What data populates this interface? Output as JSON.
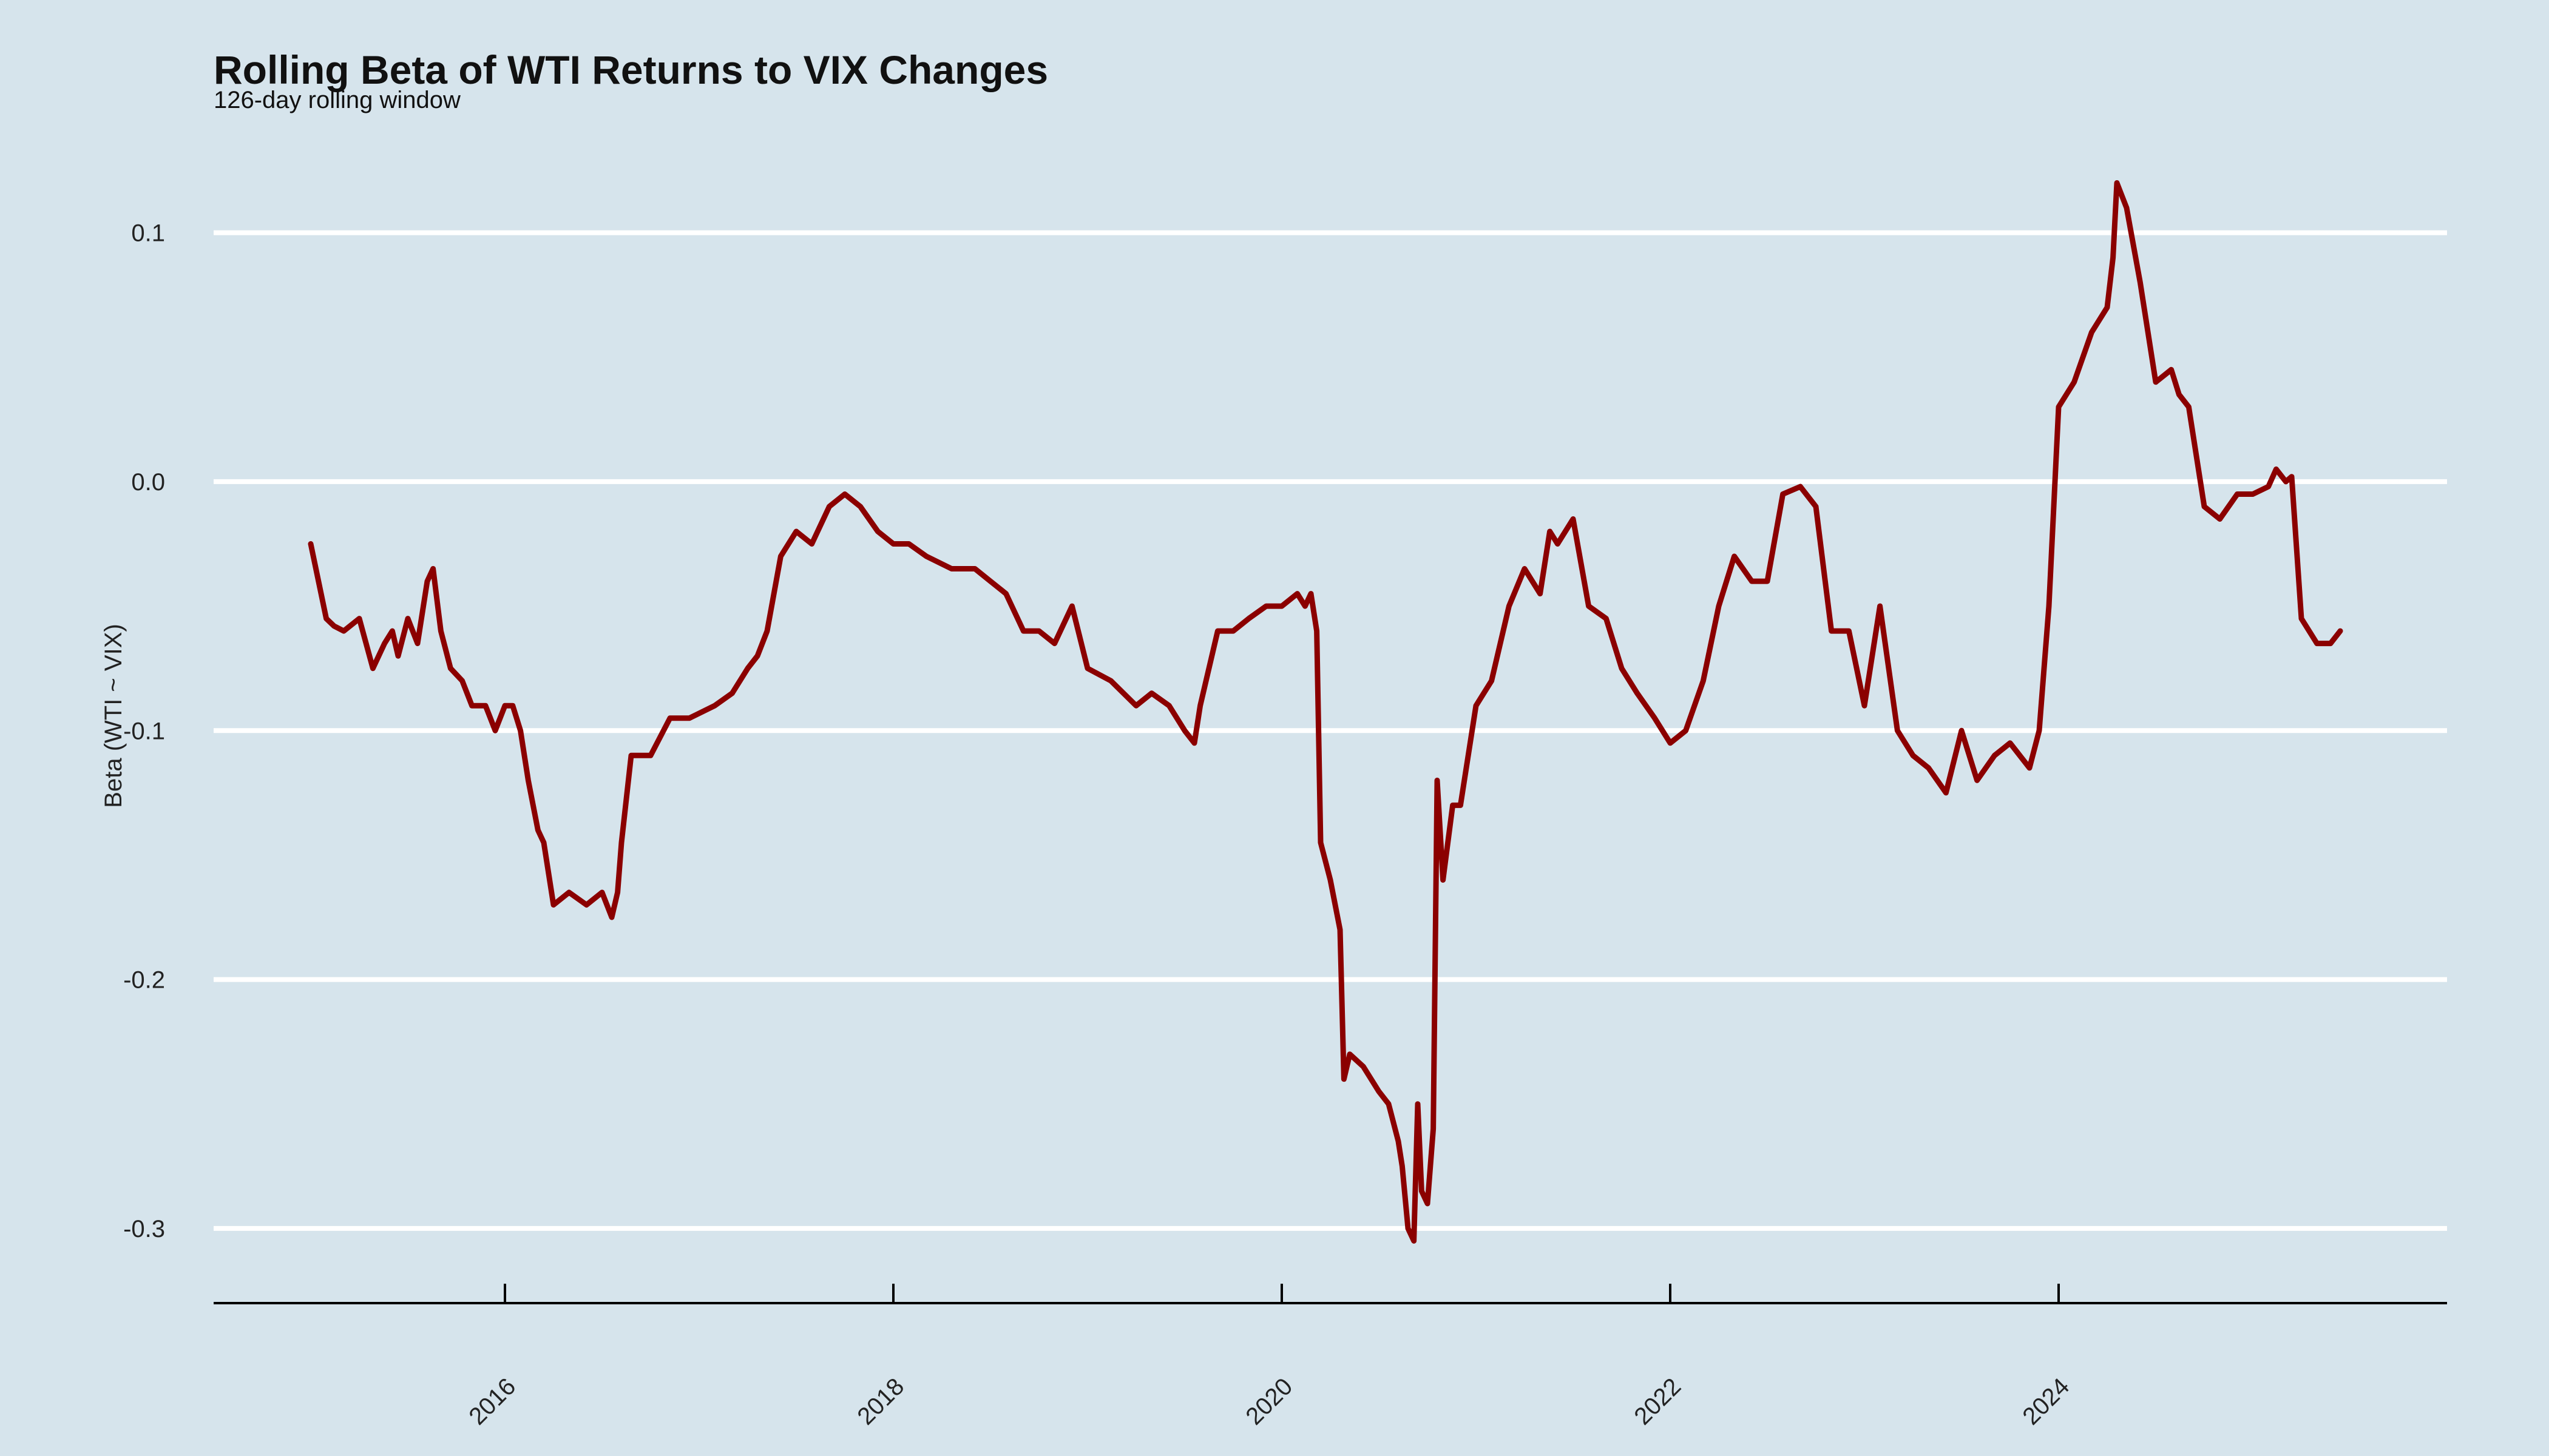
{
  "chart_data": {
    "type": "line",
    "title": "Rolling Beta of WTI Returns to VIX Changes",
    "subtitle": "126-day rolling window",
    "xlabel": "",
    "ylabel": "Beta (WTI ~ VIX)",
    "xlim": [
      2014.5,
      2026.0
    ],
    "ylim": [
      -0.33,
      0.135
    ],
    "x_ticks": [
      {
        "value": 2016,
        "label": "2016"
      },
      {
        "value": 2018,
        "label": "2018"
      },
      {
        "value": 2020,
        "label": "2020"
      },
      {
        "value": 2022,
        "label": "2022"
      },
      {
        "value": 2024,
        "label": "2024"
      }
    ],
    "y_ticks": [
      {
        "value": 0.1,
        "label": "0.1"
      },
      {
        "value": 0.0,
        "label": "0.0"
      },
      {
        "value": -0.1,
        "label": "-0.1"
      },
      {
        "value": -0.2,
        "label": "-0.2"
      },
      {
        "value": -0.3,
        "label": "-0.3"
      }
    ],
    "grid": {
      "horizontal": true,
      "vertical": false
    },
    "legend": "none",
    "colors": {
      "line": "#8b0000",
      "grid": "#ffffff",
      "background": "#d6e4ec"
    },
    "series": [
      {
        "color": "#8b0000",
        "x": [
          2015.0,
          2015.04,
          2015.08,
          2015.12,
          2015.17,
          2015.25,
          2015.32,
          2015.38,
          2015.42,
          2015.45,
          2015.5,
          2015.55,
          2015.6,
          2015.63,
          2015.67,
          2015.72,
          2015.78,
          2015.83,
          2015.9,
          2015.95,
          2016.0,
          2016.04,
          2016.08,
          2016.12,
          2016.17,
          2016.2,
          2016.25,
          2016.33,
          2016.42,
          2016.5,
          2016.55,
          2016.58,
          2016.6,
          2016.65,
          2016.75,
          2016.85,
          2016.95,
          2017.08,
          2017.17,
          2017.25,
          2017.3,
          2017.35,
          2017.42,
          2017.5,
          2017.58,
          2017.67,
          2017.75,
          2017.83,
          2017.92,
          2018.0,
          2018.08,
          2018.17,
          2018.3,
          2018.42,
          2018.5,
          2018.58,
          2018.67,
          2018.75,
          2018.83,
          2018.92,
          2019.0,
          2019.12,
          2019.25,
          2019.33,
          2019.42,
          2019.5,
          2019.55,
          2019.58,
          2019.67,
          2019.75,
          2019.83,
          2019.92,
          2020.0,
          2020.08,
          2020.12,
          2020.15,
          2020.18,
          2020.2,
          2020.25,
          2020.3,
          2020.32,
          2020.35,
          2020.42,
          2020.5,
          2020.55,
          2020.6,
          2020.62,
          2020.65,
          2020.68,
          2020.7,
          2020.72,
          2020.75,
          2020.78,
          2020.8,
          2020.83,
          2020.88,
          2020.92,
          2021.0,
          2021.08,
          2021.17,
          2021.25,
          2021.33,
          2021.38,
          2021.42,
          2021.5,
          2021.58,
          2021.67,
          2021.75,
          2021.83,
          2021.92,
          2022.0,
          2022.08,
          2022.17,
          2022.25,
          2022.33,
          2022.42,
          2022.5,
          2022.58,
          2022.67,
          2022.75,
          2022.83,
          2022.92,
          2023.0,
          2023.08,
          2023.17,
          2023.25,
          2023.33,
          2023.42,
          2023.5,
          2023.58,
          2023.67,
          2023.75,
          2023.8,
          2023.85,
          2023.9,
          2023.95,
          2024.0,
          2024.08,
          2024.17,
          2024.25,
          2024.28,
          2024.3,
          2024.35,
          2024.42,
          2024.5,
          2024.58,
          2024.62,
          2024.67,
          2024.75,
          2024.83,
          2024.92,
          2025.0,
          2025.08,
          2025.12,
          2025.17,
          2025.2,
          2025.25,
          2025.33,
          2025.4,
          2025.45
        ],
        "y": [
          -0.025,
          -0.04,
          -0.055,
          -0.058,
          -0.06,
          -0.055,
          -0.075,
          -0.065,
          -0.06,
          -0.07,
          -0.055,
          -0.065,
          -0.04,
          -0.035,
          -0.06,
          -0.075,
          -0.08,
          -0.09,
          -0.09,
          -0.1,
          -0.09,
          -0.09,
          -0.1,
          -0.12,
          -0.14,
          -0.145,
          -0.17,
          -0.165,
          -0.17,
          -0.165,
          -0.175,
          -0.165,
          -0.145,
          -0.11,
          -0.11,
          -0.095,
          -0.095,
          -0.09,
          -0.085,
          -0.075,
          -0.07,
          -0.06,
          -0.03,
          -0.02,
          -0.025,
          -0.01,
          -0.005,
          -0.01,
          -0.02,
          -0.025,
          -0.025,
          -0.03,
          -0.035,
          -0.035,
          -0.04,
          -0.045,
          -0.06,
          -0.06,
          -0.065,
          -0.05,
          -0.075,
          -0.08,
          -0.09,
          -0.085,
          -0.09,
          -0.1,
          -0.105,
          -0.09,
          -0.06,
          -0.06,
          -0.055,
          -0.05,
          -0.05,
          -0.045,
          -0.05,
          -0.045,
          -0.06,
          -0.145,
          -0.16,
          -0.18,
          -0.24,
          -0.23,
          -0.235,
          -0.245,
          -0.25,
          -0.265,
          -0.275,
          -0.3,
          -0.305,
          -0.25,
          -0.285,
          -0.29,
          -0.26,
          -0.12,
          -0.16,
          -0.13,
          -0.13,
          -0.09,
          -0.08,
          -0.05,
          -0.035,
          -0.045,
          -0.02,
          -0.025,
          -0.015,
          -0.05,
          -0.055,
          -0.075,
          -0.085,
          -0.095,
          -0.105,
          -0.1,
          -0.08,
          -0.05,
          -0.03,
          -0.04,
          -0.04,
          -0.005,
          -0.002,
          -0.01,
          -0.06,
          -0.06,
          -0.09,
          -0.05,
          -0.1,
          -0.11,
          -0.115,
          -0.125,
          -0.1,
          -0.12,
          -0.11,
          -0.105,
          -0.11,
          -0.115,
          -0.1,
          -0.05,
          0.03,
          0.04,
          0.06,
          0.07,
          0.09,
          0.12,
          0.11,
          0.08,
          0.04,
          0.045,
          0.035,
          0.03,
          -0.01,
          -0.015,
          -0.005,
          -0.005,
          -0.002,
          0.005,
          0.0,
          0.002,
          -0.055,
          -0.065,
          -0.065,
          -0.06
        ]
      }
    ]
  }
}
